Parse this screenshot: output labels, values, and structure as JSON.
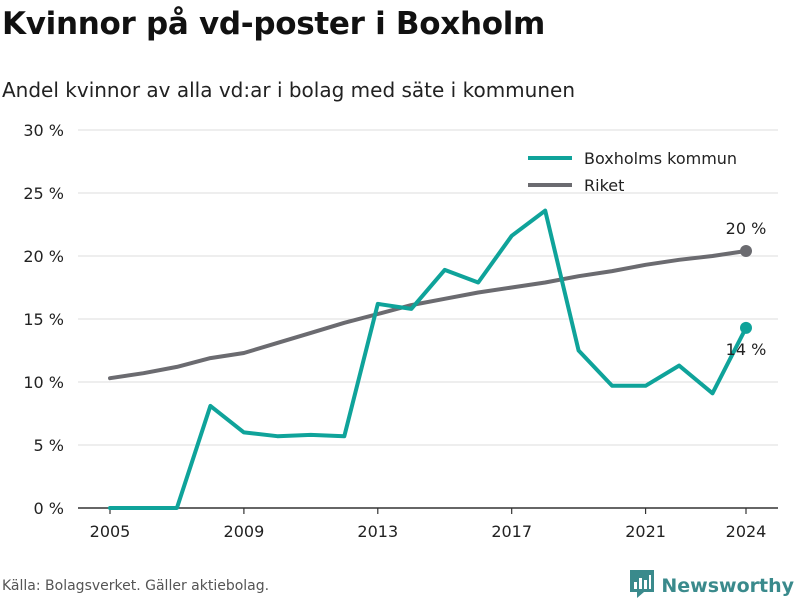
{
  "title": "Kvinnor på vd-poster i Boxholm",
  "subtitle": "Andel kvinnor av alla vd:ar i bolag med säte i kommunen",
  "footer": {
    "source": "Källa: Bolagsverket. Gäller aktiebolag.",
    "brand": "Newsworthy"
  },
  "colors": {
    "boxholm": "#0fa39a",
    "riket": "#6b6b70",
    "grid": "#dddddd",
    "brand": "#3a8a8c"
  },
  "chart_data": {
    "type": "line",
    "title": "Kvinnor på vd-poster i Boxholm",
    "subtitle": "Andel kvinnor av alla vd:ar i bolag med säte i kommunen",
    "xlabel": "",
    "ylabel": "",
    "ylim": [
      0,
      30
    ],
    "xlim": [
      2005,
      2024
    ],
    "y_ticks": [
      0,
      5,
      10,
      15,
      20,
      25,
      30
    ],
    "y_tick_labels": [
      "0 %",
      "5 %",
      "10 %",
      "15 %",
      "20 %",
      "25 %",
      "30 %"
    ],
    "x_ticks": [
      2005,
      2009,
      2013,
      2017,
      2021,
      2024
    ],
    "x_tick_labels": [
      "2005",
      "2009",
      "2013",
      "2017",
      "2021",
      "2024"
    ],
    "grid": "horizontal",
    "legend_position": "top-right",
    "x": [
      2005,
      2006,
      2007,
      2008,
      2009,
      2010,
      2011,
      2012,
      2013,
      2014,
      2015,
      2016,
      2017,
      2018,
      2019,
      2020,
      2021,
      2022,
      2023,
      2024
    ],
    "series": [
      {
        "name": "Boxholms kommun",
        "color": "#0fa39a",
        "values": [
          0,
          0,
          0,
          8.1,
          6.0,
          5.7,
          5.8,
          5.7,
          16.2,
          15.8,
          18.9,
          17.9,
          21.6,
          23.6,
          12.5,
          9.7,
          9.7,
          11.3,
          9.1,
          14.3
        ],
        "end_label": "14 %"
      },
      {
        "name": "Riket",
        "color": "#6b6b70",
        "values": [
          10.3,
          10.7,
          11.2,
          11.9,
          12.3,
          13.1,
          13.9,
          14.7,
          15.4,
          16.1,
          16.6,
          17.1,
          17.5,
          17.9,
          18.4,
          18.8,
          19.3,
          19.7,
          20.0,
          20.4
        ],
        "end_label": "20 %"
      }
    ]
  }
}
